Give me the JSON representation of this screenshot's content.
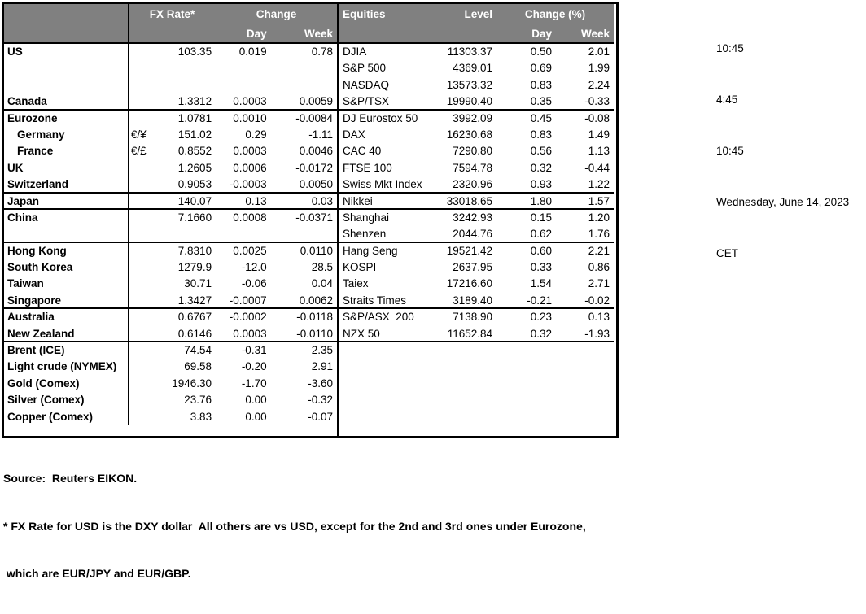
{
  "colors": {
    "header_bg": "#808080",
    "header_text": "#ffffff",
    "border": "#000000",
    "background": "#ffffff"
  },
  "fx_table": {
    "headers": {
      "rate": "FX Rate*",
      "change": "Change",
      "day": "Day",
      "week": "Week"
    },
    "rows": [
      {
        "label": "US",
        "pair": "",
        "rate": "103.35",
        "day": "0.019",
        "week": "0.78",
        "indent": false,
        "section_end": false
      },
      {
        "label": "",
        "pair": "",
        "rate": "",
        "day": "",
        "week": "",
        "indent": false,
        "section_end": false
      },
      {
        "label": "",
        "pair": "",
        "rate": "",
        "day": "",
        "week": "",
        "indent": false,
        "section_end": false
      },
      {
        "label": "Canada",
        "pair": "",
        "rate": "1.3312",
        "day": "0.0003",
        "week": "0.0059",
        "indent": false,
        "section_end": true
      },
      {
        "label": "Eurozone",
        "pair": "",
        "rate": "1.0781",
        "day": "0.0010",
        "week": "-0.0084",
        "indent": false,
        "section_end": false
      },
      {
        "label": "Germany",
        "pair": "€/¥",
        "rate": "151.02",
        "day": "0.29",
        "week": "-1.11",
        "indent": true,
        "section_end": false
      },
      {
        "label": "France",
        "pair": "€/£",
        "rate": "0.8552",
        "day": "0.0003",
        "week": "0.0046",
        "indent": true,
        "section_end": false
      },
      {
        "label": "UK",
        "pair": "",
        "rate": "1.2605",
        "day": "0.0006",
        "week": "-0.0172",
        "indent": false,
        "section_end": false
      },
      {
        "label": "Switzerland",
        "pair": "",
        "rate": "0.9053",
        "day": "-0.0003",
        "week": "0.0050",
        "indent": false,
        "section_end": true
      },
      {
        "label": "Japan",
        "pair": "",
        "rate": "140.07",
        "day": "0.13",
        "week": "0.03",
        "indent": false,
        "section_end": true
      },
      {
        "label": "China",
        "pair": "",
        "rate": "7.1660",
        "day": "0.0008",
        "week": "-0.0371",
        "indent": false,
        "section_end": false
      },
      {
        "label": "",
        "pair": "",
        "rate": "",
        "day": "",
        "week": "",
        "indent": false,
        "section_end": true
      },
      {
        "label": "Hong Kong",
        "pair": "",
        "rate": "7.8310",
        "day": "0.0025",
        "week": "0.0110",
        "indent": false,
        "section_end": false
      },
      {
        "label": "South Korea",
        "pair": "",
        "rate": "1279.9",
        "day": "-12.0",
        "week": "28.5",
        "indent": false,
        "section_end": false
      },
      {
        "label": "Taiwan",
        "pair": "",
        "rate": "30.71",
        "day": "-0.06",
        "week": "0.04",
        "indent": false,
        "section_end": false
      },
      {
        "label": "Singapore",
        "pair": "",
        "rate": "1.3427",
        "day": "-0.0007",
        "week": "0.0062",
        "indent": false,
        "section_end": true
      },
      {
        "label": "Australia",
        "pair": "",
        "rate": "0.6767",
        "day": "-0.0002",
        "week": "-0.0118",
        "indent": false,
        "section_end": false
      },
      {
        "label": "New Zealand",
        "pair": "",
        "rate": "0.6146",
        "day": "0.0003",
        "week": "-0.0110",
        "indent": false,
        "section_end": true
      },
      {
        "label": "Brent (ICE)",
        "pair": "",
        "rate": "74.54",
        "day": "-0.31",
        "week": "2.35",
        "indent": false,
        "section_end": false
      },
      {
        "label": "Light crude (NYMEX)",
        "pair": "",
        "rate": "69.58",
        "day": "-0.20",
        "week": "2.91",
        "indent": false,
        "section_end": false
      },
      {
        "label": "Gold (Comex)",
        "pair": "",
        "rate": "1946.30",
        "day": "-1.70",
        "week": "-3.60",
        "indent": false,
        "section_end": false
      },
      {
        "label": "Silver (Comex)",
        "pair": "",
        "rate": "23.76",
        "day": "0.00",
        "week": "-0.32",
        "indent": false,
        "section_end": false
      },
      {
        "label": "Copper (Comex)",
        "pair": "",
        "rate": "3.83",
        "day": "0.00",
        "week": "-0.07",
        "indent": false,
        "section_end": false
      }
    ]
  },
  "equities_table": {
    "headers": {
      "title": "Equities",
      "level": "Level",
      "change": "Change (%)",
      "day": "Day",
      "week": "Week"
    },
    "rows": [
      {
        "name": "DJIA",
        "level": "11303.37",
        "day": "0.50",
        "week": "2.01",
        "section_end": false
      },
      {
        "name": "S&P 500",
        "level": "4369.01",
        "day": "0.69",
        "week": "1.99",
        "section_end": false
      },
      {
        "name": "NASDAQ",
        "level": "13573.32",
        "day": "0.83",
        "week": "2.24",
        "section_end": false
      },
      {
        "name": "S&P/TSX",
        "level": "19990.40",
        "day": "0.35",
        "week": "-0.33",
        "section_end": true
      },
      {
        "name": "DJ Eurostox 50",
        "level": "3992.09",
        "day": "0.45",
        "week": "-0.08",
        "section_end": false
      },
      {
        "name": "DAX",
        "level": "16230.68",
        "day": "0.83",
        "week": "1.49",
        "section_end": false
      },
      {
        "name": "CAC 40",
        "level": "7290.80",
        "day": "0.56",
        "week": "1.13",
        "section_end": false
      },
      {
        "name": "FTSE 100",
        "level": "7594.78",
        "day": "0.32",
        "week": "-0.44",
        "section_end": false
      },
      {
        "name": "Swiss Mkt Index",
        "level": "2320.96",
        "day": "0.93",
        "week": "1.22",
        "section_end": true
      },
      {
        "name": "Nikkei",
        "level": "33018.65",
        "day": "1.80",
        "week": "1.57",
        "section_end": true
      },
      {
        "name": "Shanghai",
        "level": "3242.93",
        "day": "0.15",
        "week": "1.20",
        "section_end": false
      },
      {
        "name": "Shenzen",
        "level": "2044.76",
        "day": "0.62",
        "week": "1.76",
        "section_end": true
      },
      {
        "name": "Hang Seng",
        "level": "19521.42",
        "day": "0.60",
        "week": "2.21",
        "section_end": false
      },
      {
        "name": "KOSPI",
        "level": "2637.95",
        "day": "0.33",
        "week": "0.86",
        "section_end": false
      },
      {
        "name": "Taiex",
        "level": "17216.60",
        "day": "1.54",
        "week": "2.71",
        "section_end": false
      },
      {
        "name": "Straits Times",
        "level": "3189.40",
        "day": "-0.21",
        "week": "-0.02",
        "section_end": true
      },
      {
        "name": "S&P/ASX  200",
        "level": "7138.90",
        "day": "0.23",
        "week": "0.13",
        "section_end": false
      },
      {
        "name": "NZX 50",
        "level": "11652.84",
        "day": "0.32",
        "week": "-1.93",
        "section_end": true
      }
    ]
  },
  "info_panel": {
    "lines": [
      "10:45",
      "4:45",
      "10:45",
      "Wednesday, June 14, 2023",
      "CET"
    ]
  },
  "footnotes": {
    "source": "Source:  Reuters EIKON.",
    "note1": "* FX Rate for USD is the DXY dollar  All others are vs USD, except for the 2nd and 3rd ones under Eurozone,",
    "note2": " which are EUR/JPY and EUR/GBP."
  }
}
